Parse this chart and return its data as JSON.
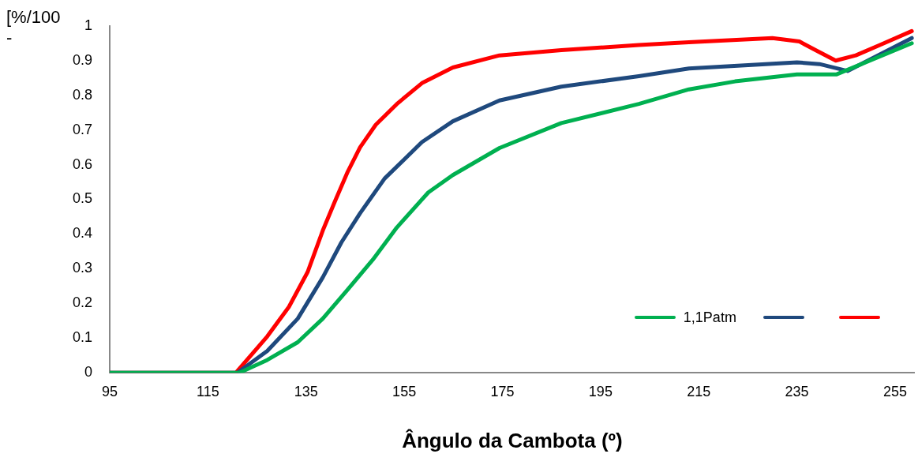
{
  "chart_data": {
    "type": "line",
    "xlabel": "Ângulo da Cambota (º)",
    "ylabel": "[%/100\n-",
    "xlim": [
      95,
      259
    ],
    "xticks": [
      95,
      115,
      135,
      155,
      175,
      195,
      215,
      235,
      255
    ],
    "ylim": [
      0,
      1
    ],
    "yticks": [
      0,
      0.1,
      0.2,
      0.3,
      0.4,
      0.5,
      0.6,
      0.7,
      0.8,
      0.9,
      1
    ],
    "grid": false,
    "legend": "bottom right",
    "marker": "none",
    "line_style": "solid",
    "series": [
      {
        "name": "1,1Patm",
        "color": "#00b050",
        "x": [
          95,
          121.4,
          127.1,
          133.3,
          138.4,
          143.5,
          148.6,
          153.5,
          159.9,
          164.9,
          174.4,
          187,
          202.8,
          213,
          222.4,
          235,
          243,
          258.4
        ],
        "values": [
          0,
          0,
          0.037,
          0.088,
          0.156,
          0.24,
          0.326,
          0.419,
          0.52,
          0.57,
          0.648,
          0.72,
          0.775,
          0.817,
          0.84,
          0.86,
          0.86,
          0.95
        ]
      },
      {
        "color": "#1f497d",
        "x": [
          95,
          121,
          127.1,
          133.3,
          138.4,
          142.2,
          146,
          151,
          158.6,
          164.9,
          174.4,
          187,
          202.8,
          213,
          235,
          239.6,
          245.3,
          258.4
        ],
        "values": [
          0,
          0,
          0.063,
          0.156,
          0.275,
          0.376,
          0.46,
          0.56,
          0.665,
          0.725,
          0.785,
          0.825,
          0.855,
          0.877,
          0.895,
          0.89,
          0.87,
          0.965
        ]
      },
      {
        "color": "#ff0000",
        "x": [
          95,
          120.7,
          127.1,
          131.5,
          135.3,
          138.4,
          140.9,
          143.5,
          146,
          149.2,
          153.5,
          158.6,
          164.9,
          174.4,
          187,
          202.8,
          213,
          230,
          235.5,
          238.8,
          242.9,
          247,
          251.9,
          258.4
        ],
        "values": [
          0,
          0,
          0.105,
          0.19,
          0.29,
          0.41,
          0.495,
          0.58,
          0.65,
          0.715,
          0.775,
          0.835,
          0.88,
          0.915,
          0.93,
          0.945,
          0.953,
          0.965,
          0.955,
          0.93,
          0.9,
          0.915,
          0.945,
          0.985
        ]
      }
    ]
  }
}
